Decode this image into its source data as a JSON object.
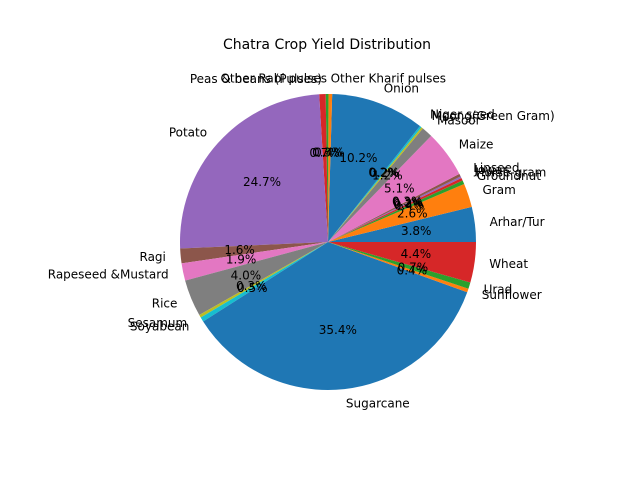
{
  "chart_data": {
    "type": "pie",
    "title": "Chatra Crop Yield Distribution",
    "start_angle_deg": 0,
    "direction": "counterclockwise",
    "slices": [
      {
        "label": "Arhar/Tur",
        "value": 3.8,
        "pct_label": "3.8%",
        "color": "#1f77b4"
      },
      {
        "label": "Gram",
        "value": 2.6,
        "pct_label": "2.6%",
        "color": "#ff7f0e"
      },
      {
        "label": "Groundnut",
        "value": 0.4,
        "pct_label": "0.4%",
        "color": "#2ca02c"
      },
      {
        "label": "Horse-gram",
        "value": 0.3,
        "pct_label": "0.3%",
        "color": "#d62728"
      },
      {
        "label": "Jowar",
        "value": 0.2,
        "pct_label": "0.2%",
        "color": "#9467bd"
      },
      {
        "label": "Linseed",
        "value": 0.3,
        "pct_label": "0.3%",
        "color": "#8c564b"
      },
      {
        "label": "Maize",
        "value": 5.1,
        "pct_label": "5.1%",
        "color": "#e377c2"
      },
      {
        "label": "Masoor",
        "value": 1.2,
        "pct_label": "1.2%",
        "color": "#7f7f7f"
      },
      {
        "label": "Moong(Green Gram)",
        "value": 0.2,
        "pct_label": "0.2%",
        "color": "#bcbd22"
      },
      {
        "label": "Niger seed",
        "value": 0.2,
        "pct_label": "0.2%",
        "color": "#17becf"
      },
      {
        "label": "Onion",
        "value": 10.2,
        "pct_label": "10.2%",
        "color": "#1f77b4"
      },
      {
        "label": "Other Kharif pulses",
        "value": 0.4,
        "pct_label": "0.4%",
        "color": "#ff7f0e"
      },
      {
        "label": "Other Rabi pulses",
        "value": 0.3,
        "pct_label": "0.3%",
        "color": "#2ca02c"
      },
      {
        "label": "Peas & beans (Pulses)",
        "value": 0.7,
        "pct_label": "0.7%",
        "color": "#d62728"
      },
      {
        "label": "Potato",
        "value": 24.7,
        "pct_label": "24.7%",
        "color": "#9467bd"
      },
      {
        "label": "Ragi",
        "value": 1.6,
        "pct_label": "1.6%",
        "color": "#8c564b"
      },
      {
        "label": "Rapeseed &Mustard",
        "value": 1.9,
        "pct_label": "1.9%",
        "color": "#e377c2"
      },
      {
        "label": "Rice",
        "value": 4.0,
        "pct_label": "4.0%",
        "color": "#7f7f7f"
      },
      {
        "label": "Sesamum",
        "value": 0.3,
        "pct_label": "0.3%",
        "color": "#bcbd22"
      },
      {
        "label": "Soyabean",
        "value": 0.5,
        "pct_label": "0.5%",
        "color": "#17becf"
      },
      {
        "label": "Sugarcane",
        "value": 35.4,
        "pct_label": "35.4%",
        "color": "#1f77b4"
      },
      {
        "label": "Sunflower",
        "value": 0.4,
        "pct_label": "0.4%",
        "color": "#ff7f0e"
      },
      {
        "label": "Urad",
        "value": 0.7,
        "pct_label": "0.7%",
        "color": "#2ca02c"
      },
      {
        "label": "Wheat",
        "value": 4.4,
        "pct_label": "4.4%",
        "color": "#d62728"
      }
    ]
  }
}
